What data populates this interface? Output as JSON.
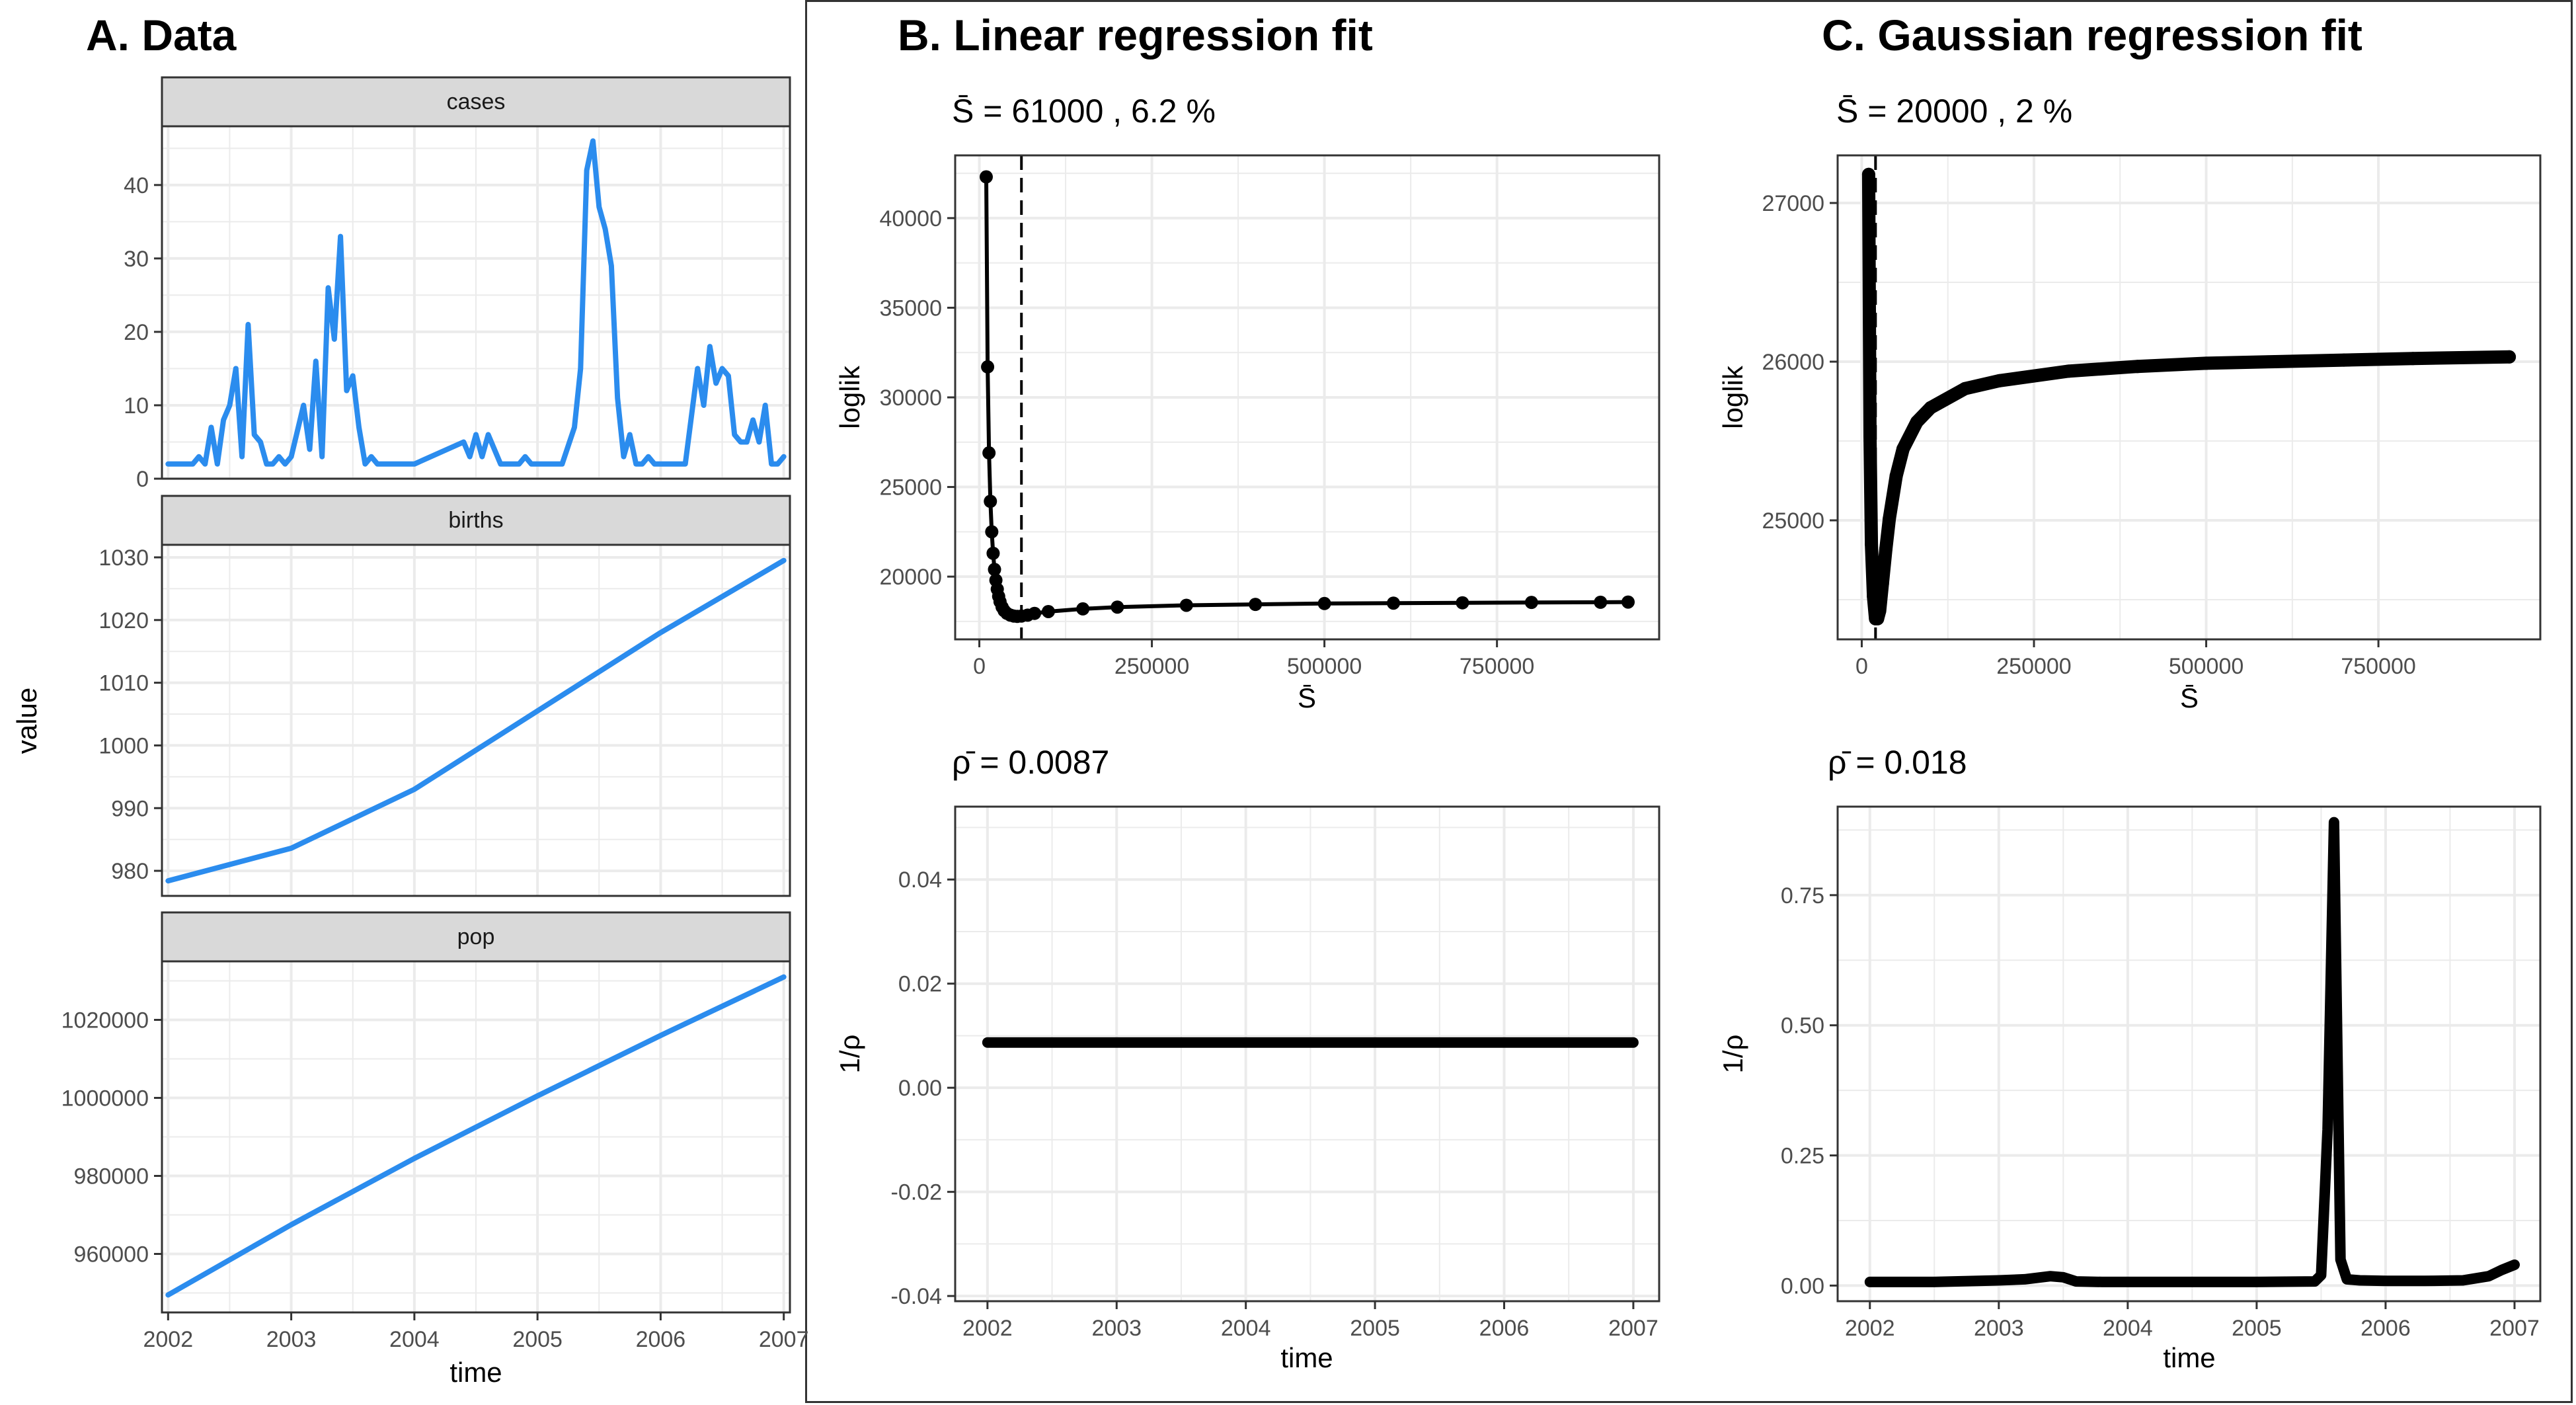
{
  "panels": {
    "a_title": "A. Data",
    "b_title": "B. Linear regression fit",
    "c_title": "C. Gaussian regression fit"
  },
  "colors": {
    "data_line": "#2b8cee",
    "fit_line": "#000000",
    "strip_bg": "#d9d9d9",
    "grid": "#ebebeb"
  },
  "chart_data": [
    {
      "type": "line",
      "facet": "cases",
      "xlabel": "time",
      "ylabel": "value",
      "xlim": [
        2001.95,
        2007.05
      ],
      "ylim": [
        0,
        48
      ],
      "xticks": [
        2002,
        2003,
        2004,
        2005,
        2006,
        2007
      ],
      "yticks": [
        0,
        10,
        20,
        30,
        40
      ],
      "x": [
        2002.0,
        2002.1,
        2002.2,
        2002.25,
        2002.3,
        2002.35,
        2002.4,
        2002.45,
        2002.5,
        2002.55,
        2002.6,
        2002.65,
        2002.7,
        2002.75,
        2002.8,
        2002.85,
        2002.9,
        2002.95,
        2003.0,
        2003.1,
        2003.15,
        2003.2,
        2003.25,
        2003.3,
        2003.35,
        2003.4,
        2003.45,
        2003.5,
        2003.55,
        2003.6,
        2003.65,
        2003.7,
        2003.75,
        2003.8,
        2003.85,
        2003.9,
        2003.95,
        2004.0,
        2004.4,
        2004.45,
        2004.5,
        2004.55,
        2004.6,
        2004.65,
        2004.7,
        2004.75,
        2004.8,
        2004.85,
        2004.9,
        2004.95,
        2005.0,
        2005.2,
        2005.3,
        2005.35,
        2005.4,
        2005.45,
        2005.5,
        2005.55,
        2005.6,
        2005.65,
        2005.7,
        2005.75,
        2005.8,
        2005.85,
        2005.9,
        2005.95,
        2006.0,
        2006.05,
        2006.1,
        2006.2,
        2006.3,
        2006.35,
        2006.4,
        2006.45,
        2006.5,
        2006.55,
        2006.6,
        2006.65,
        2006.7,
        2006.75,
        2006.8,
        2006.85,
        2006.9,
        2006.95,
        2007.0
      ],
      "y": [
        2,
        2,
        2,
        3,
        2,
        7,
        2,
        8,
        10,
        15,
        3,
        21,
        6,
        5,
        2,
        2,
        3,
        2,
        3,
        10,
        4,
        16,
        3,
        26,
        19,
        33,
        12,
        14,
        7,
        2,
        3,
        2,
        2,
        2,
        2,
        2,
        2,
        2,
        5,
        3,
        6,
        3,
        6,
        4,
        2,
        2,
        2,
        2,
        3,
        2,
        2,
        2,
        7,
        15,
        42,
        46,
        37,
        34,
        29,
        11,
        3,
        6,
        2,
        2,
        3,
        2,
        2,
        2,
        2,
        2,
        15,
        10,
        18,
        13,
        15,
        14,
        6,
        5,
        5,
        8,
        5,
        10,
        2,
        2,
        3
      ]
    },
    {
      "type": "line",
      "facet": "births",
      "xlim": [
        2001.95,
        2007.05
      ],
      "ylim": [
        976,
        1032
      ],
      "xticks": [
        2002,
        2003,
        2004,
        2005,
        2006,
        2007
      ],
      "yticks": [
        980,
        990,
        1000,
        1010,
        1020,
        1030
      ],
      "x": [
        2002.0,
        2003.0,
        2004.0,
        2005.0,
        2006.0,
        2007.0
      ],
      "y": [
        978.4,
        983.6,
        993.0,
        1005.5,
        1018.0,
        1029.5
      ]
    },
    {
      "type": "line",
      "facet": "pop",
      "xlim": [
        2001.95,
        2007.05
      ],
      "ylim": [
        945000,
        1035000
      ],
      "xticks": [
        2002,
        2003,
        2004,
        2005,
        2006,
        2007
      ],
      "yticks": [
        960000,
        980000,
        1000000,
        1020000
      ],
      "x": [
        2002.0,
        2003.0,
        2004.0,
        2005.0,
        2006.0,
        2007.0
      ],
      "y": [
        949500,
        967500,
        984500,
        1000500,
        1016000,
        1031000
      ]
    },
    {
      "type": "scatter",
      "panel": "B-top",
      "subtitle": "S̄ = 61000 , 6.2 %",
      "xlabel": "S̄",
      "ylabel": "loglik",
      "xlim": [
        -35000,
        985000
      ],
      "ylim": [
        16500,
        43500
      ],
      "xticks": [
        0,
        250000,
        500000,
        750000
      ],
      "yticks": [
        20000,
        25000,
        30000,
        35000,
        40000
      ],
      "vline": 61000,
      "x": [
        10000,
        12000,
        14000,
        16000,
        18000,
        20000,
        22000,
        24000,
        26000,
        28000,
        30000,
        33000,
        36000,
        40000,
        45000,
        50000,
        55000,
        61000,
        70000,
        80000,
        100000,
        150000,
        200000,
        300000,
        400000,
        500000,
        600000,
        700000,
        800000,
        900000,
        940000
      ],
      "y": [
        42300,
        31700,
        26900,
        24200,
        22500,
        21300,
        20400,
        19800,
        19300,
        18900,
        18600,
        18300,
        18100,
        17950,
        17850,
        17800,
        17780,
        17800,
        17850,
        17950,
        18050,
        18200,
        18300,
        18400,
        18450,
        18500,
        18520,
        18540,
        18560,
        18570,
        18580
      ]
    },
    {
      "type": "line",
      "panel": "B-bottom",
      "subtitle": "ρ̄ = 0.0087",
      "xlabel": "time",
      "ylabel": "1/ρ",
      "xlim": [
        2001.75,
        2007.2
      ],
      "ylim": [
        -0.041,
        0.054
      ],
      "xticks": [
        2002,
        2003,
        2004,
        2005,
        2006,
        2007
      ],
      "yticks": [
        -0.04,
        -0.02,
        0.0,
        0.02,
        0.04
      ],
      "x": [
        2002.0,
        2007.0
      ],
      "y": [
        0.0087,
        0.0087
      ]
    },
    {
      "type": "scatter",
      "panel": "C-top",
      "subtitle": "S̄ = 20000 , 2 %",
      "xlabel": "S̄",
      "ylabel": "loglik",
      "xlim": [
        -35000,
        985000
      ],
      "ylim": [
        24250,
        27300
      ],
      "xticks": [
        0,
        250000,
        500000,
        750000
      ],
      "yticks": [
        25000,
        26000,
        27000
      ],
      "vline": 20000,
      "x": [
        10000,
        12000,
        14000,
        17000,
        20000,
        23000,
        26000,
        30000,
        35000,
        40000,
        50000,
        60000,
        80000,
        100000,
        150000,
        200000,
        300000,
        400000,
        500000,
        600000,
        700000,
        800000,
        940000
      ],
      "y": [
        27180,
        25530,
        24850,
        24520,
        24380,
        24380,
        24430,
        24600,
        24820,
        25010,
        25280,
        25450,
        25620,
        25710,
        25830,
        25880,
        25940,
        25970,
        25990,
        26000,
        26010,
        26020,
        26030
      ]
    },
    {
      "type": "line",
      "panel": "C-bottom",
      "subtitle": "ρ̄ = 0.018",
      "xlabel": "time",
      "ylabel": "1/ρ",
      "xlim": [
        2001.75,
        2007.2
      ],
      "ylim": [
        -0.03,
        0.92
      ],
      "xticks": [
        2002,
        2003,
        2004,
        2005,
        2006,
        2007
      ],
      "yticks": [
        0.0,
        0.25,
        0.5,
        0.75
      ],
      "x": [
        2002.0,
        2002.5,
        2003.0,
        2003.2,
        2003.4,
        2003.5,
        2003.6,
        2003.8,
        2004.0,
        2004.5,
        2005.0,
        2005.45,
        2005.5,
        2005.55,
        2005.6,
        2005.65,
        2005.7,
        2005.8,
        2006.0,
        2006.3,
        2006.6,
        2006.8,
        2006.9,
        2007.0
      ],
      "y": [
        0.007,
        0.007,
        0.01,
        0.012,
        0.018,
        0.016,
        0.008,
        0.007,
        0.007,
        0.007,
        0.007,
        0.008,
        0.02,
        0.3,
        0.89,
        0.05,
        0.012,
        0.01,
        0.009,
        0.009,
        0.01,
        0.018,
        0.03,
        0.04
      ]
    }
  ]
}
